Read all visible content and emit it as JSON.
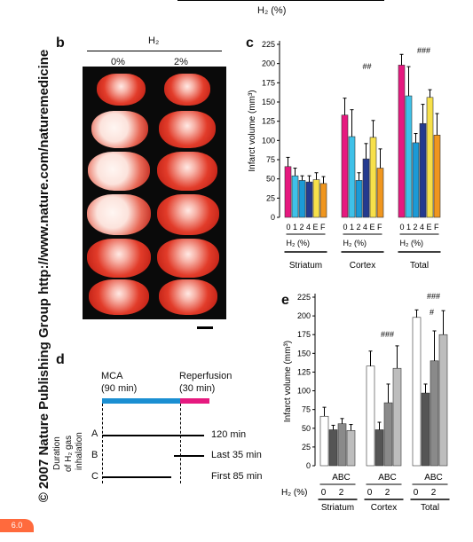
{
  "side_credit": "© 2007 Nature Publishing Group  http://www.nature.com/naturemedicine",
  "top_header": "H₂ (%)",
  "panel_b": {
    "label": "b",
    "h2_title": "H₂",
    "col_left": "0%",
    "col_right": "2%"
  },
  "panel_c": {
    "label": "c",
    "ylabel": "Infarct volume (mm³)",
    "yticks": [
      "0",
      "25",
      "50",
      "75",
      "100",
      "125",
      "150",
      "175",
      "200",
      "225"
    ],
    "group_tick_label": "0 1 2 4 E F",
    "group_h2_label": "H₂ (%)",
    "groups": [
      "Striatum",
      "Cortex",
      "Total"
    ],
    "sig_hash_cortex": "##",
    "sig_hash_total": "###"
  },
  "panel_d": {
    "label": "d",
    "mca_label": "MCA",
    "mca_dur": "(90 min)",
    "rep_label": "Reperfusion",
    "rep_dur": "(30 min)",
    "y_title_1": "Duration",
    "y_title_2": "of H₂ gas",
    "y_title_3": "inhalation",
    "rows": [
      {
        "id": "A",
        "text": "120 min"
      },
      {
        "id": "B",
        "text": "Last 35 min"
      },
      {
        "id": "C",
        "text": "First 85 min"
      }
    ]
  },
  "panel_e": {
    "label": "e",
    "ylabel": "Infarct volume (mm³)",
    "yticks": [
      "0",
      "25",
      "50",
      "75",
      "100",
      "125",
      "150",
      "175",
      "200",
      "225"
    ],
    "abc": "ABC",
    "h2_prefix": "H₂ (%)",
    "h2_zero": "0",
    "h2_two": "2",
    "groups": [
      "Striatum",
      "Cortex",
      "Total"
    ],
    "sig_hash_cortex": "###",
    "sig_hash_total": "###",
    "sig_hash_total2": "#"
  },
  "page_mark": "6.0",
  "chart_data": [
    {
      "type": "bar",
      "panel": "c",
      "ylabel": "Infarct volume (mm³)",
      "ylim": [
        0,
        225
      ],
      "categories": [
        "Striatum",
        "Cortex",
        "Total"
      ],
      "series": [
        {
          "name": "0",
          "color": "#e6197f",
          "values": [
            66,
            133,
            198
          ],
          "err": [
            12,
            22,
            14
          ]
        },
        {
          "name": "1",
          "color": "#3fc1e8",
          "values": [
            54,
            105,
            158
          ],
          "err": [
            10,
            35,
            38
          ]
        },
        {
          "name": "2",
          "color": "#1b9ad6",
          "values": [
            48,
            48,
            97
          ],
          "err": [
            6,
            10,
            12
          ]
        },
        {
          "name": "4",
          "color": "#243a8f",
          "values": [
            46,
            76,
            122
          ],
          "err": [
            8,
            20,
            25
          ]
        },
        {
          "name": "E",
          "color": "#f7e04a",
          "values": [
            49,
            104,
            156
          ],
          "err": [
            9,
            22,
            10
          ]
        },
        {
          "name": "F",
          "color": "#f0961e",
          "values": [
            44,
            64,
            107
          ],
          "err": [
            9,
            25,
            28
          ]
        }
      ]
    },
    {
      "type": "bar",
      "panel": "e",
      "ylabel": "Infarct volume (mm³)",
      "ylim": [
        0,
        225
      ],
      "categories": [
        "Striatum",
        "Cortex",
        "Total"
      ],
      "series": [
        {
          "name": "0",
          "color": "#ffffff",
          "values": [
            66,
            133,
            198
          ],
          "err": [
            12,
            20,
            10
          ]
        },
        {
          "name": "A",
          "color": "#555555",
          "values": [
            48,
            48,
            97
          ],
          "err": [
            6,
            10,
            12
          ]
        },
        {
          "name": "B",
          "color": "#8a8a8a",
          "values": [
            56,
            84,
            140
          ],
          "err": [
            7,
            25,
            40
          ]
        },
        {
          "name": "C",
          "color": "#bdbdbd",
          "values": [
            47,
            130,
            175
          ],
          "err": [
            8,
            30,
            32
          ]
        }
      ]
    }
  ]
}
